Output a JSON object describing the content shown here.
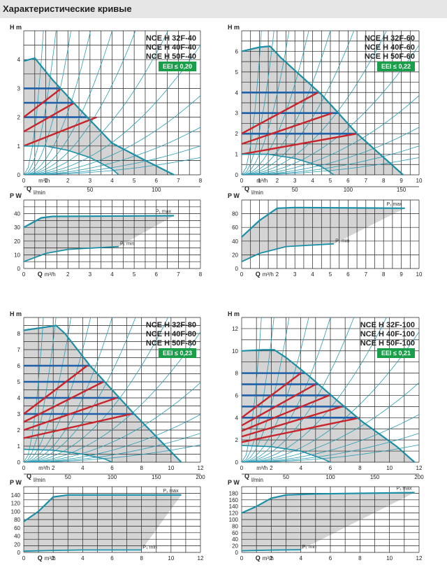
{
  "page_title": "Характеристические кривые",
  "colors": {
    "grid": "#222222",
    "shade": "#d4d4d4",
    "teal": "#1c8fa6",
    "curve": "#2a9bb4",
    "blue": "#1f5fa8",
    "red": "#c8242b",
    "badge": "#1a9e4a"
  },
  "chart_data": [
    {
      "type": "line",
      "models": [
        "NCE H 32F-40",
        "NCE H 40F-40",
        "NCE H 50F-40"
      ],
      "eei": "EEI ≤ 0,20",
      "head": {
        "ylabel": "H m",
        "xlabel": "Q",
        "x_unit": "m³/h",
        "l_unit": "l/min",
        "xlim": [
          0,
          8
        ],
        "ylim": [
          0,
          5
        ],
        "x_ticks": [
          "0",
          "1",
          "2",
          "3",
          "4",
          "5",
          "6",
          "7",
          "8"
        ],
        "y_ticks": [
          "0",
          "1",
          "2",
          "3",
          "4"
        ],
        "l_ticks": [
          {
            "q": 0.83,
            "label": "Q"
          },
          {
            "q": 3,
            "label": "50"
          },
          {
            "q": 6,
            "label": "100"
          }
        ],
        "max_curve": [
          [
            0,
            3.95
          ],
          [
            0.5,
            4.05
          ],
          [
            1.3,
            3.3
          ],
          [
            2.5,
            2.3
          ],
          [
            4,
            1.1
          ],
          [
            5.5,
            0.5
          ],
          [
            6.8,
            0
          ]
        ],
        "min_curve": [
          [
            0,
            1.0
          ],
          [
            1,
            1.0
          ],
          [
            2,
            0.85
          ],
          [
            3,
            0.6
          ],
          [
            4,
            0.2
          ],
          [
            4.3,
            0
          ]
        ],
        "pc_lines": [
          {
            "y": 3
          },
          {
            "y": 2.5
          },
          {
            "y": 2
          }
        ],
        "pp_lines": [
          [
            [
              0,
              2.0
            ],
            [
              1.7,
              3.0
            ]
          ],
          [
            [
              0,
              1.5
            ],
            [
              2.3,
              2.5
            ]
          ],
          [
            [
              0,
              1.0
            ],
            [
              3.3,
              2.0
            ]
          ]
        ]
      },
      "power": {
        "ylabel": "P W",
        "xlabel": "Q",
        "x_unit": "m³/h",
        "xlim": [
          0,
          8
        ],
        "ylim": [
          0,
          50
        ],
        "x_ticks": [
          "0",
          "1",
          "2",
          "3",
          "4",
          "5",
          "6",
          "7",
          "8"
        ],
        "y_ticks": [
          "0",
          "10",
          "20",
          "30",
          "40"
        ],
        "pmax_label": "P₁ max",
        "pmin_label": "P₁ min",
        "pmax": [
          [
            0,
            30
          ],
          [
            0.8,
            37
          ],
          [
            1.3,
            38
          ],
          [
            6.8,
            38.5
          ]
        ],
        "pmin": [
          [
            0,
            5
          ],
          [
            1,
            11
          ],
          [
            2,
            14
          ],
          [
            4.3,
            16
          ]
        ]
      }
    },
    {
      "type": "line",
      "models": [
        "NCE H 32F-60",
        "NCE H 40F-60",
        "NCE H 50F-60"
      ],
      "eei": "EEI ≤ 0,22",
      "head": {
        "ylabel": "H m",
        "xlabel": "Q",
        "x_unit": "m³/h",
        "l_unit": "l/min",
        "xlim": [
          0,
          10
        ],
        "ylim": [
          0,
          7
        ],
        "x_ticks": [
          "0",
          "1",
          "2",
          "3",
          "4",
          "5",
          "6",
          "7",
          "8",
          "9",
          "10"
        ],
        "y_ticks": [
          "0",
          "1",
          "2",
          "3",
          "4",
          "5",
          "6"
        ],
        "l_ticks": [
          {
            "q": 0.83,
            "label": "Q"
          },
          {
            "q": 3,
            "label": "50"
          },
          {
            "q": 6,
            "label": "100"
          },
          {
            "q": 9,
            "label": "150"
          }
        ],
        "max_curve": [
          [
            0,
            6.0
          ],
          [
            1,
            6.2
          ],
          [
            1.6,
            6.25
          ],
          [
            2.2,
            5.7
          ],
          [
            4.5,
            3.9
          ],
          [
            6.5,
            2.0
          ],
          [
            9.1,
            0
          ]
        ],
        "min_curve": [
          [
            0,
            1.0
          ],
          [
            1.5,
            1.0
          ],
          [
            3,
            0.8
          ],
          [
            4.5,
            0.4
          ],
          [
            5.2,
            0
          ]
        ],
        "pc_lines": [
          {
            "y": 4
          },
          {
            "y": 3
          },
          {
            "y": 2
          }
        ],
        "pp_lines": [
          [
            [
              0,
              2.0
            ],
            [
              4.3,
              4.0
            ]
          ],
          [
            [
              0,
              1.5
            ],
            [
              5.1,
              3.0
            ]
          ],
          [
            [
              0,
              1.0
            ],
            [
              6.5,
              2.0
            ]
          ]
        ]
      },
      "power": {
        "ylabel": "P W",
        "xlabel": "Q",
        "x_unit": "m³/h",
        "xlim": [
          0,
          10
        ],
        "ylim": [
          0,
          100
        ],
        "x_ticks": [
          "0",
          "1",
          "2",
          "3",
          "4",
          "5",
          "6",
          "7",
          "8",
          "9",
          "10"
        ],
        "y_ticks": [
          "0",
          "20",
          "40",
          "60",
          "80"
        ],
        "pmax_label": "P₁ max",
        "pmin_label": "P₁ min",
        "pmax": [
          [
            0,
            46
          ],
          [
            1,
            70
          ],
          [
            2,
            88
          ],
          [
            3,
            89
          ],
          [
            9.2,
            88
          ]
        ],
        "pmin": [
          [
            0,
            10
          ],
          [
            1,
            22
          ],
          [
            2.5,
            32
          ],
          [
            5.2,
            36
          ]
        ]
      }
    },
    {
      "type": "line",
      "models": [
        "NCE H 32F-80",
        "NCE H 40F-80",
        "NCE H 50F-80"
      ],
      "eei": "EEI ≤ 0,23",
      "head": {
        "ylabel": "H m",
        "xlabel": "Q",
        "x_unit": "m³/h",
        "l_unit": "l/min",
        "xlim": [
          0,
          12
        ],
        "ylim": [
          0,
          9
        ],
        "x_ticks": [
          "0",
          "2",
          "4",
          "6",
          "8",
          "10",
          "12"
        ],
        "y_ticks": [
          "0",
          "1",
          "2",
          "3",
          "4",
          "5",
          "6",
          "7",
          "8"
        ],
        "l_ticks": [
          {
            "q": 0.4,
            "label": "Q"
          },
          {
            "q": 3,
            "label": "50"
          },
          {
            "q": 6,
            "label": "100"
          },
          {
            "q": 9,
            "label": "150"
          },
          {
            "q": 12,
            "label": "200"
          }
        ],
        "max_curve": [
          [
            0,
            8.2
          ],
          [
            1.5,
            8.4
          ],
          [
            2.2,
            8.5
          ],
          [
            2.8,
            8.0
          ],
          [
            4.5,
            6.0
          ],
          [
            6.5,
            4.0
          ],
          [
            7.5,
            3.0
          ],
          [
            10.7,
            0
          ]
        ],
        "min_curve": [
          [
            0,
            0.8
          ],
          [
            2,
            0.75
          ],
          [
            4,
            0.5
          ],
          [
            5.5,
            0.2
          ],
          [
            6,
            0
          ]
        ],
        "pc_lines": [
          {
            "y": 6
          },
          {
            "y": 5
          },
          {
            "y": 4
          },
          {
            "y": 3
          }
        ],
        "pp_lines": [
          [
            [
              0,
              3.0
            ],
            [
              4.3,
              6.0
            ]
          ],
          [
            [
              0,
              2.5
            ],
            [
              5.4,
              5.0
            ]
          ],
          [
            [
              0,
              2.0
            ],
            [
              6.3,
              4.0
            ]
          ],
          [
            [
              0,
              1.5
            ],
            [
              7.3,
              3.0
            ]
          ]
        ]
      },
      "power": {
        "ylabel": "P W",
        "xlabel": "Q",
        "x_unit": "m³/h",
        "xlim": [
          0,
          12
        ],
        "ylim": [
          0,
          160
        ],
        "x_ticks": [
          "0",
          "2",
          "4",
          "6",
          "8",
          "10",
          "12"
        ],
        "y_ticks": [
          "0",
          "20",
          "40",
          "60",
          "80",
          "100",
          "120",
          "140"
        ],
        "pmax_label": "P₁ max",
        "pmin_label": "P₁ min",
        "pmax": [
          [
            0,
            75
          ],
          [
            1,
            100
          ],
          [
            2,
            135
          ],
          [
            3,
            140
          ],
          [
            10.7,
            140
          ]
        ],
        "pmin": [
          [
            0,
            3
          ],
          [
            2,
            5
          ],
          [
            4,
            6
          ],
          [
            8,
            6
          ]
        ]
      }
    },
    {
      "type": "line",
      "models": [
        "NCE H 32F-100",
        "NCE H 40F-100",
        "NCE H 50F-100"
      ],
      "eei": "EEI ≤ 0,21",
      "head": {
        "ylabel": "H m",
        "xlabel": "Q",
        "x_unit": "m³/h",
        "l_unit": "l/min",
        "xlim": [
          0,
          12
        ],
        "ylim": [
          0,
          13
        ],
        "x_ticks": [
          "0",
          "2",
          "4",
          "6",
          "8",
          "10",
          "12"
        ],
        "y_ticks": [
          "0",
          "2",
          "4",
          "6",
          "8",
          "10",
          "12"
        ],
        "l_ticks": [
          {
            "q": 0.4,
            "label": "Q"
          },
          {
            "q": 3,
            "label": "50"
          },
          {
            "q": 6,
            "label": "100"
          },
          {
            "q": 9,
            "label": "150"
          },
          {
            "q": 12,
            "label": "200"
          }
        ],
        "max_curve": [
          [
            0,
            10.0
          ],
          [
            1.5,
            10.1
          ],
          [
            2.2,
            10.1
          ],
          [
            3,
            9.4
          ],
          [
            4.5,
            7.8
          ],
          [
            6.5,
            5.5
          ],
          [
            8.2,
            3.6
          ],
          [
            10.5,
            1.4
          ],
          [
            11.7,
            0
          ]
        ],
        "min_curve": [
          [
            0,
            1.5
          ],
          [
            2,
            1.4
          ],
          [
            4,
            1.0
          ],
          [
            5.5,
            0.3
          ],
          [
            6,
            0
          ]
        ],
        "pc_lines": [
          {
            "y": 8
          },
          {
            "y": 7
          },
          {
            "y": 6
          },
          {
            "y": 5
          },
          {
            "y": 4
          }
        ],
        "pp_lines": [
          [
            [
              0,
              4.0
            ],
            [
              4.0,
              8.0
            ]
          ],
          [
            [
              0,
              3.3
            ],
            [
              5.0,
              7.0
            ]
          ],
          [
            [
              0,
              2.8
            ],
            [
              5.9,
              6.0
            ]
          ],
          [
            [
              0,
              2.3
            ],
            [
              6.8,
              5.0
            ]
          ],
          [
            [
              0,
              1.8
            ],
            [
              8.0,
              4.0
            ]
          ]
        ]
      },
      "power": {
        "ylabel": "P W",
        "xlabel": "Q",
        "x_unit": "m³/h",
        "xlim": [
          0,
          12
        ],
        "ylim": [
          0,
          200
        ],
        "x_ticks": [
          "0",
          "2",
          "4",
          "6",
          "8",
          "10",
          "12"
        ],
        "y_ticks": [
          "0",
          "20",
          "40",
          "60",
          "80",
          "100",
          "120",
          "140",
          "160",
          "180"
        ],
        "pmax_label": "P₁ max",
        "pmin_label": "P₁ min",
        "pmax": [
          [
            0,
            120
          ],
          [
            1,
            140
          ],
          [
            2,
            165
          ],
          [
            3,
            175
          ],
          [
            5,
            178
          ],
          [
            11.7,
            182
          ]
        ],
        "pmin": [
          [
            0,
            5
          ],
          [
            2,
            7
          ],
          [
            4,
            8
          ]
        ]
      }
    }
  ]
}
